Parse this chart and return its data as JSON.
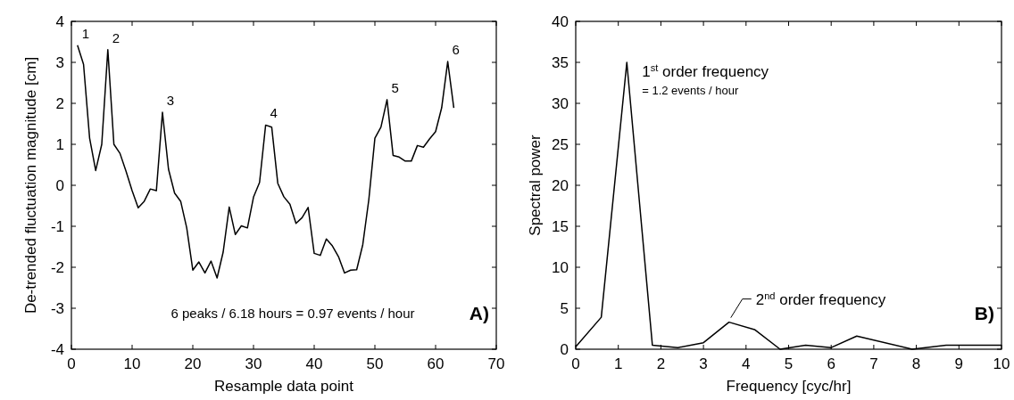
{
  "chart_data": [
    {
      "type": "line",
      "xlabel": "Resample data point",
      "ylabel": "De-trended fluctuation magnitude [cm]",
      "x": [
        1,
        2,
        3,
        4,
        5,
        6,
        7,
        8,
        9,
        10,
        11,
        12,
        13,
        14,
        15,
        16,
        17,
        18,
        19,
        20,
        21,
        22,
        23,
        24,
        25,
        26,
        27,
        28,
        29,
        30,
        31,
        32,
        33,
        34,
        35,
        36,
        37,
        38,
        39,
        40,
        41,
        42,
        43,
        44,
        45,
        46,
        47,
        48,
        49,
        50,
        51,
        52,
        53,
        54,
        55,
        56,
        57,
        58,
        59,
        60,
        61,
        62,
        63
      ],
      "series": [
        {
          "color": "#000000",
          "values": [
            3.42,
            2.95,
            1.15,
            0.36,
            1.0,
            3.31,
            1.0,
            0.78,
            0.34,
            -0.13,
            -0.55,
            -0.39,
            -0.09,
            -0.13,
            1.78,
            0.39,
            -0.19,
            -0.39,
            -1.04,
            -2.07,
            -1.87,
            -2.14,
            -1.85,
            -2.26,
            -1.63,
            -0.53,
            -1.2,
            -0.99,
            -1.04,
            -0.29,
            0.07,
            1.47,
            1.42,
            0.05,
            -0.28,
            -0.46,
            -0.93,
            -0.79,
            -0.54,
            -1.66,
            -1.71,
            -1.31,
            -1.48,
            -1.74,
            -2.14,
            -2.07,
            -2.06,
            -1.45,
            -0.35,
            1.15,
            1.42,
            2.09,
            0.73,
            0.69,
            0.59,
            0.59,
            0.97,
            0.93,
            1.13,
            1.31,
            1.89,
            3.02,
            1.89
          ]
        }
      ],
      "xlim": [
        0,
        70
      ],
      "xticks": [
        0,
        10,
        20,
        30,
        40,
        50,
        60,
        70
      ],
      "ylim": [
        -4,
        4
      ],
      "yticks": [
        -4,
        -3,
        -2,
        -1,
        0,
        1,
        2,
        3,
        4
      ],
      "marker": "none",
      "line_style": "solid",
      "annotations": [
        {
          "text": "1",
          "x": 1,
          "y": 3.42
        },
        {
          "text": "2",
          "x": 6,
          "y": 3.31
        },
        {
          "text": "3",
          "x": 15,
          "y": 1.78
        },
        {
          "text": "4",
          "x": 32,
          "y": 1.47
        },
        {
          "text": "5",
          "x": 52,
          "y": 2.09
        },
        {
          "text": "6",
          "x": 62,
          "y": 3.02
        },
        "6 peaks / 6.18 hours = 0.97 events / hour",
        "A)"
      ]
    },
    {
      "type": "line",
      "xlabel": "Frequency [cyc/hr]",
      "ylabel": "Spectral power",
      "x": [
        0,
        0.6,
        1.2,
        1.8,
        2.4,
        3.0,
        3.6,
        4.2,
        4.8,
        5.4,
        6.0,
        6.6,
        7.9,
        8.7,
        10
      ],
      "series": [
        {
          "color": "#000000",
          "values": [
            0.3,
            3.9,
            35,
            0.5,
            0.2,
            0.8,
            3.3,
            2.4,
            0,
            0.5,
            0.2,
            1.6,
            0,
            0.5,
            0.5
          ]
        }
      ],
      "xlim": [
        0,
        10
      ],
      "xticks": [
        0,
        1,
        2,
        3,
        4,
        5,
        6,
        7,
        8,
        9,
        10
      ],
      "ylim": [
        0,
        40
      ],
      "yticks": [
        0,
        5,
        10,
        15,
        20,
        25,
        30,
        35,
        40
      ],
      "marker": "none",
      "line_style": "solid",
      "annotations": [
        {
          "text": "1$^{st}$ order frequency",
          "x": 1.2,
          "y": 35
        },
        "= 1.2 events / hour",
        {
          "text": "2$^{nd}$ order frequency",
          "x": 3.6,
          "y": 3.3
        },
        "B)"
      ]
    }
  ]
}
